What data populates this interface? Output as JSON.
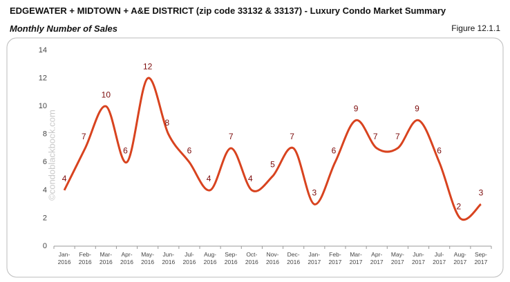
{
  "header": {
    "title": "EDGEWATER + MIDTOWN + A&E DISTRICT (zip code 33132 & 33137) - Luxury Condo Market Summary",
    "subtitle": "Monthly Number of Sales",
    "figure": "Figure 12.1.1",
    "watermark": "©condoblackbook.com"
  },
  "chart_data": {
    "type": "line",
    "categories": [
      "Jan-2016",
      "Feb-2016",
      "Mar-2016",
      "Apr-2016",
      "May-2016",
      "Jun-2016",
      "Jul-2016",
      "Aug-2016",
      "Sep-2016",
      "Oct-2016",
      "Nov-2016",
      "Dec-2016",
      "Jan-2017",
      "Feb-2017",
      "Mar-2017",
      "Apr-2017",
      "May-2017",
      "Jun-2017",
      "Jul-2017",
      "Aug-2017",
      "Sep-2017"
    ],
    "values": [
      4,
      7,
      10,
      6,
      12,
      8,
      6,
      4,
      7,
      4,
      5,
      7,
      3,
      6,
      9,
      7,
      7,
      9,
      6,
      2,
      3
    ],
    "color": "#d8431f",
    "label_color": "#7b0a0a",
    "ylim": [
      0,
      14
    ],
    "yticks": [
      0,
      2,
      4,
      6,
      8,
      10,
      12,
      14
    ]
  }
}
